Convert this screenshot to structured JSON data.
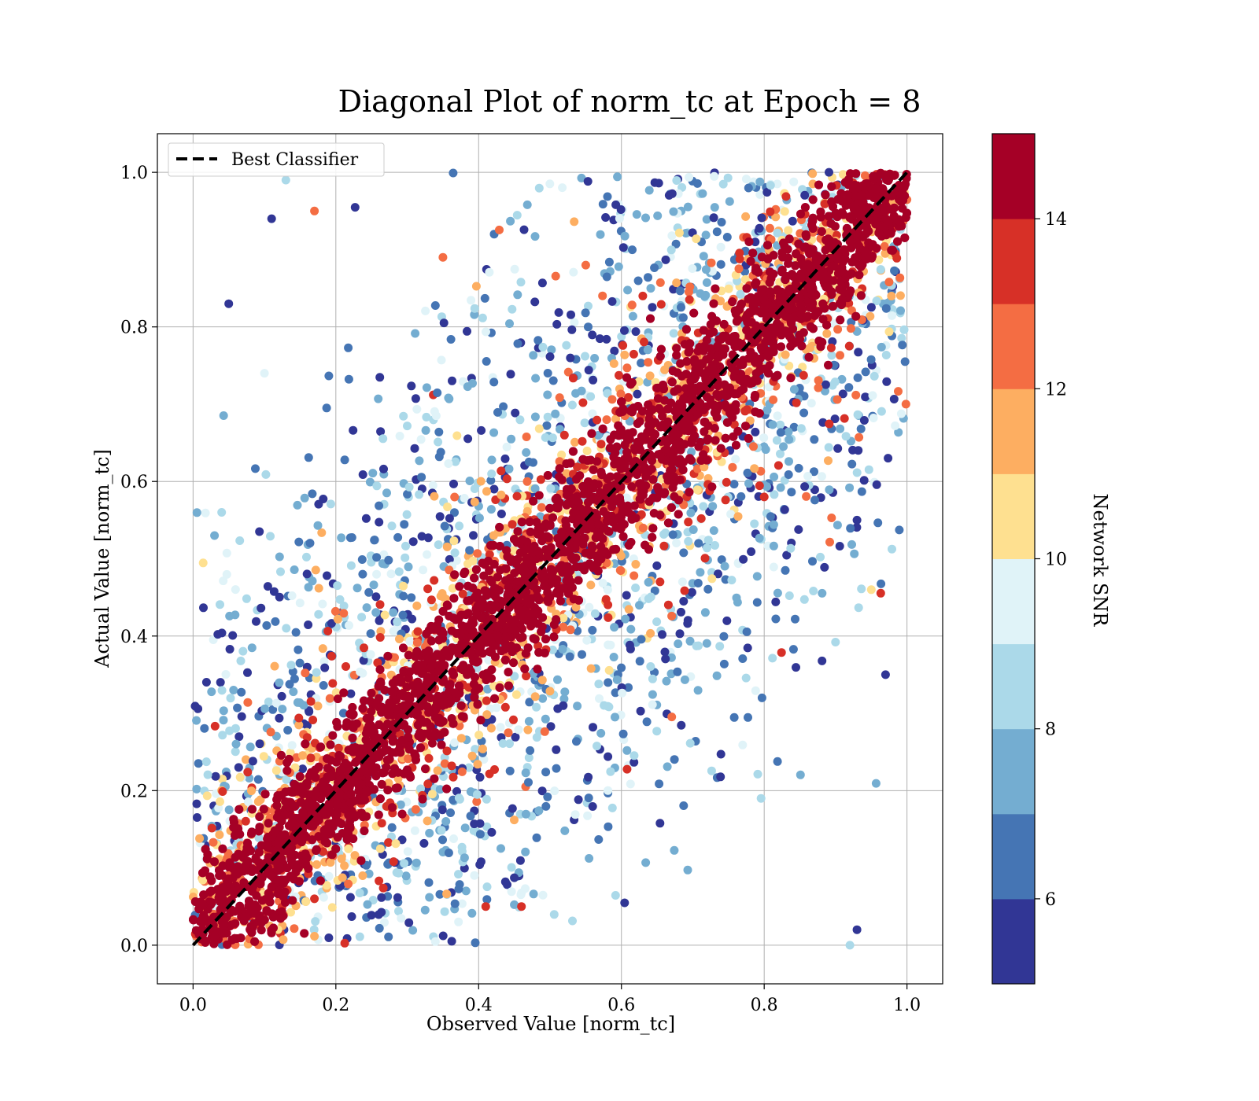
{
  "chart_data": {
    "type": "scatter",
    "title": "Diagonal Plot of norm_tc at Epoch = 8",
    "xlabel": "Observed Value [norm_tc]",
    "ylabel": "Actual Value [norm_tc]",
    "xlim": [
      -0.05,
      1.05
    ],
    "ylim": [
      -0.05,
      1.05
    ],
    "xticks": [
      "0.0",
      "0.2",
      "0.4",
      "0.6",
      "0.8",
      "1.0"
    ],
    "yticks": [
      "0.0",
      "0.2",
      "0.4",
      "0.6",
      "0.8",
      "1.0"
    ],
    "grid": true,
    "reference_line": {
      "name": "Best Classifier",
      "x": [
        0,
        1
      ],
      "y": [
        0,
        1
      ],
      "style": "dashed",
      "color": "#000000"
    },
    "legend": {
      "placement": "top-left",
      "entries": [
        "Best Classifier"
      ]
    },
    "colorbar": {
      "label": "Network SNR",
      "range": [
        5,
        15
      ],
      "ticks": [
        "6",
        "8",
        "10",
        "12",
        "14"
      ],
      "tick_values": [
        6,
        8,
        10,
        12,
        14
      ],
      "colormap": "RdYlBu_r",
      "bins": [
        "#313695",
        "#4575b4",
        "#74add1",
        "#abd9e9",
        "#e0f3f8",
        "#fee090",
        "#fdae61",
        "#f46d43",
        "#d73027",
        "#a50026"
      ]
    },
    "description_of_points": "Tens of thousands of points; high-SNR (~15) points lie tightly along y = x, lower-SNR points scatter widely off the diagonal.",
    "sample_points": [
      {
        "x": 0.05,
        "y": 0.83,
        "snr": 5.2
      },
      {
        "x": 0.11,
        "y": 0.94,
        "snr": 5.4
      },
      {
        "x": 0.13,
        "y": 0.99,
        "snr": 8.5
      },
      {
        "x": 0.17,
        "y": 0.95,
        "snr": 12.8
      },
      {
        "x": 0.35,
        "y": 0.89,
        "snr": 12.5
      },
      {
        "x": 0.55,
        "y": 0.88,
        "snr": 12.3
      },
      {
        "x": 0.03,
        "y": 0.53,
        "snr": 7.8
      },
      {
        "x": 0.04,
        "y": 0.56,
        "snr": 8.5
      },
      {
        "x": 0.1,
        "y": 0.74,
        "snr": 9.4
      },
      {
        "x": 0.93,
        "y": 0.02,
        "snr": 5.5
      },
      {
        "x": 0.92,
        "y": 0.0,
        "snr": 8.5
      },
      {
        "x": 0.95,
        "y": 0.46,
        "snr": 10.6
      },
      {
        "x": 0.97,
        "y": 0.35,
        "snr": 5.2
      },
      {
        "x": 0.93,
        "y": 0.55,
        "snr": 5.3
      },
      {
        "x": 0.41,
        "y": 0.05,
        "snr": 13.2
      },
      {
        "x": 0.46,
        "y": 0.05,
        "snr": 13.5
      },
      {
        "x": 0.17,
        "y": 0.06,
        "snr": 13.8
      },
      {
        "x": 0.8,
        "y": 0.58,
        "snr": 13.6
      },
      {
        "x": 0.63,
        "y": 0.84,
        "snr": 13.9
      }
    ]
  }
}
